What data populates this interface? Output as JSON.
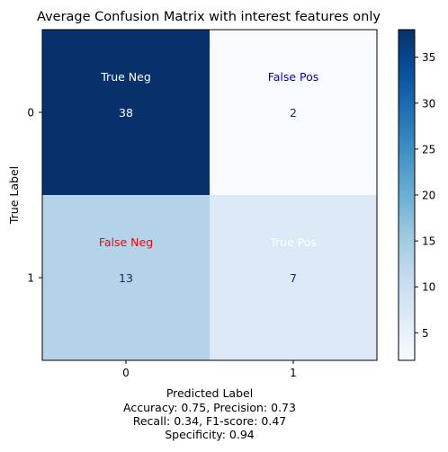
{
  "chart_data": {
    "type": "heatmap",
    "title": "Average Confusion Matrix with interest features only",
    "xlabel": "Predicted Label",
    "ylabel": "True Label",
    "x_categories": [
      "0",
      "1"
    ],
    "y_categories": [
      "0",
      "1"
    ],
    "values": [
      [
        38,
        2
      ],
      [
        13,
        7
      ]
    ],
    "cell_labels": [
      [
        "True Neg",
        "False Pos"
      ],
      [
        "False Neg",
        "True Pos"
      ]
    ],
    "cell_label_colors": [
      [
        "#ffffff",
        "#0000cd"
      ],
      [
        "#ff0000",
        "#ffffff"
      ]
    ],
    "colormap": "Blues",
    "colorbar_range": [
      2,
      38
    ],
    "colorbar_ticks": [
      "5",
      "10",
      "15",
      "20",
      "25",
      "30",
      "35"
    ],
    "colorbar_tick_values": [
      5,
      10,
      15,
      20,
      25,
      30,
      35
    ],
    "metrics_lines": [
      "Accuracy: 0.75, Precision: 0.73",
      "Recall: 0.34, F1-score: 0.47",
      "Specificity: 0.94"
    ],
    "colors": {
      "cell_38": "#08306b",
      "cell_2": "#f7fbff",
      "cell_13": "#bdd7ee",
      "cell_7": "#deebf7"
    }
  }
}
